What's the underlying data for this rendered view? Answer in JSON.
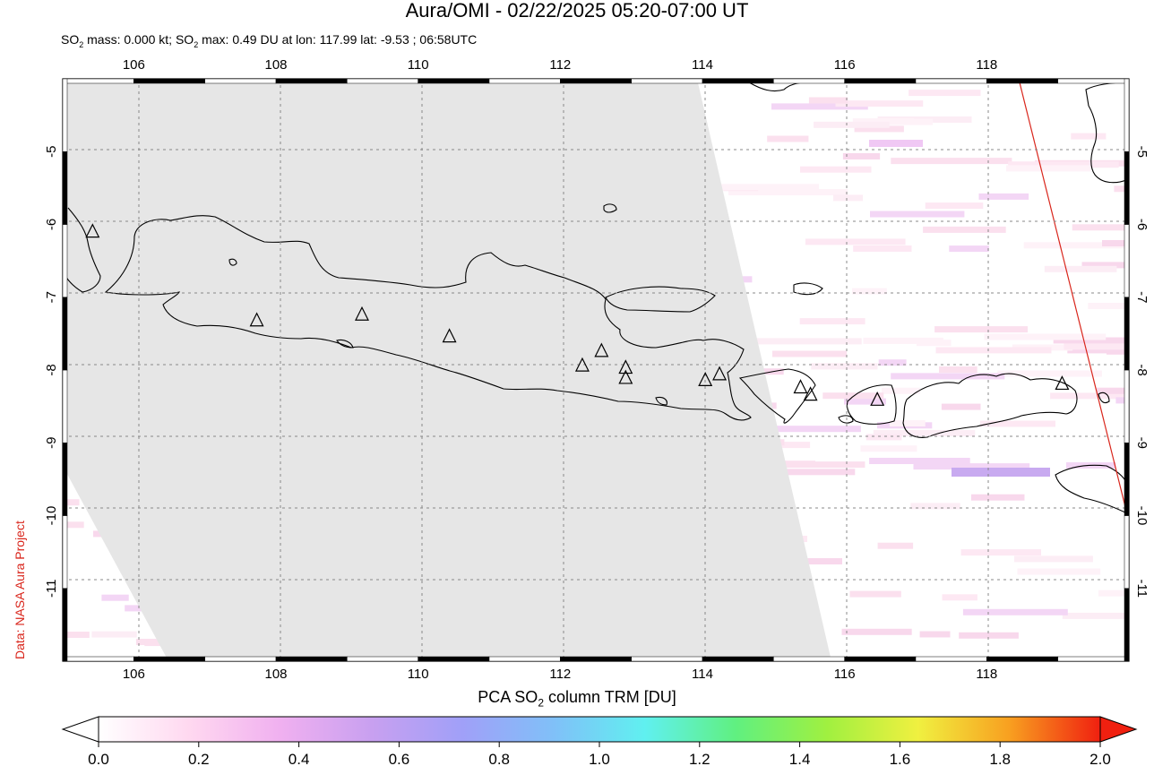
{
  "header": {
    "title": "Aura/OMI - 02/22/2025 05:20-07:00 UT",
    "subtitle_prefix": "SO",
    "subtitle_sub": "2",
    "subtitle_mid": " mass: 0.000 kt; SO",
    "subtitle_sub2": "2",
    "subtitle_rest": " max: 0.49 DU at lon: 117.99 lat: -9.53 ; 06:58UTC"
  },
  "credit": "Data: NASA Aura Project",
  "map": {
    "lon_range": [
      105.0,
      120.0
    ],
    "lat_range": [
      -12.0,
      -4.0
    ],
    "lon_ticks": [
      "106",
      "108",
      "110",
      "112",
      "114",
      "116",
      "118"
    ],
    "lat_ticks": [
      "-5",
      "-6",
      "-7",
      "-8",
      "-9",
      "-10",
      "-11"
    ],
    "no_data_color": "#e6e6e6",
    "coastline_color": "#000000",
    "orbit_line_color": "#d9261c",
    "volcanoes": [
      {
        "lon": 105.42,
        "lat": -6.1
      },
      {
        "lon": 107.73,
        "lat": -7.32
      },
      {
        "lon": 109.21,
        "lat": -7.24
      },
      {
        "lon": 110.44,
        "lat": -7.54
      },
      {
        "lon": 112.31,
        "lat": -7.94
      },
      {
        "lon": 112.58,
        "lat": -7.74
      },
      {
        "lon": 112.92,
        "lat": -7.97
      },
      {
        "lon": 112.92,
        "lat": -8.11
      },
      {
        "lon": 114.04,
        "lat": -8.14
      },
      {
        "lon": 114.24,
        "lat": -8.06
      },
      {
        "lon": 115.38,
        "lat": -8.24
      },
      {
        "lon": 115.52,
        "lat": -8.34
      },
      {
        "lon": 116.46,
        "lat": -8.41
      },
      {
        "lon": 119.06,
        "lat": -8.19
      }
    ]
  },
  "colorbar": {
    "title_prefix": "PCA SO",
    "title_sub": "2",
    "title_rest": " column TRM [DU]",
    "min": 0.0,
    "max": 2.0,
    "tick_labels": [
      "0.0",
      "0.2",
      "0.4",
      "0.6",
      "0.8",
      "1.0",
      "1.2",
      "1.4",
      "1.6",
      "1.8",
      "2.0"
    ],
    "colors": [
      "#ffffff",
      "#ffd8f0",
      "#f0b0f0",
      "#c8a0f0",
      "#a0a0f8",
      "#80c0f8",
      "#60f0f0",
      "#60f080",
      "#a0f040",
      "#f0f040",
      "#f8a020",
      "#f02010"
    ]
  }
}
